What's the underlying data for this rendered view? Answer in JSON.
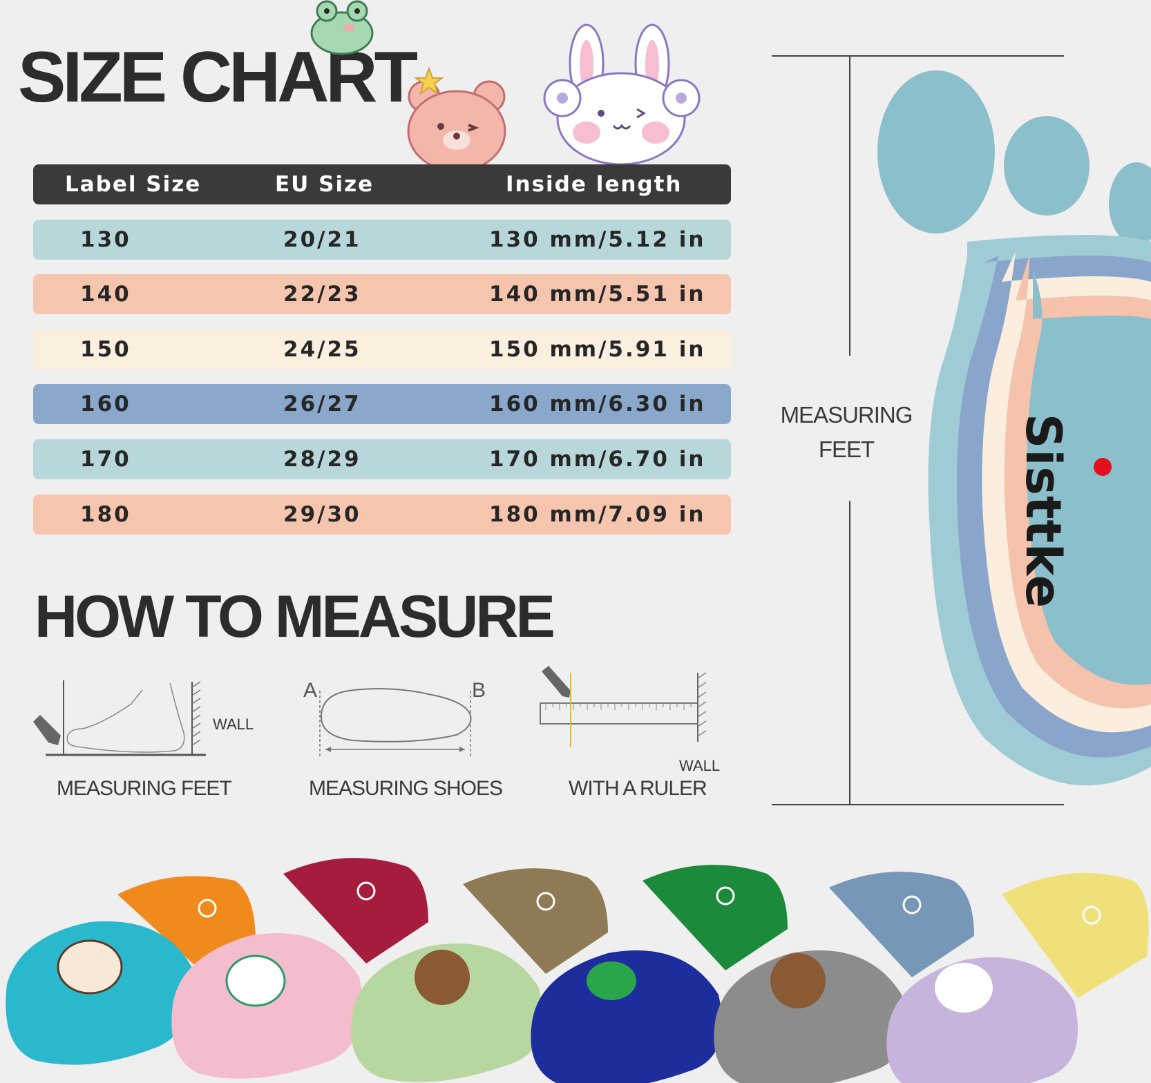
{
  "title": "SIZE CHART",
  "table": {
    "headers": [
      "Label Size",
      "EU Size",
      "Inside length"
    ],
    "rows": [
      {
        "label": "130",
        "eu": "20/21",
        "length": "130 mm/5.12 in",
        "color": "#b8d7da"
      },
      {
        "label": "140",
        "eu": "22/23",
        "length": "140 mm/5.51 in",
        "color": "#f5c5ae"
      },
      {
        "label": "150",
        "eu": "24/25",
        "length": "150 mm/5.91 in",
        "color": "#fbf0df"
      },
      {
        "label": "160",
        "eu": "26/27",
        "length": "160 mm/6.30 in",
        "color": "#89a8cc"
      },
      {
        "label": "170",
        "eu": "28/29",
        "length": "170 mm/6.70 in",
        "color": "#b8d7da"
      },
      {
        "label": "180",
        "eu": "29/30",
        "length": "180 mm/7.09 in",
        "color": "#f5c5ae"
      }
    ]
  },
  "how_to": {
    "title": "HOW TO MEASURE",
    "steps": [
      {
        "label": "MEASURING FEET",
        "wall": "WALL"
      },
      {
        "label": "MEASURING SHOES",
        "a": "A",
        "b": "B"
      },
      {
        "label": "WITH A RULER",
        "wall": "WALL"
      }
    ]
  },
  "side": {
    "measure_line1": "MEASURING",
    "measure_line2": "FEET",
    "brand": "Sisttke",
    "brand_dot_color": "#e3101c"
  },
  "footprint_colors": [
    "#8bbfcc",
    "#8aa5cc",
    "#fbeede",
    "#f5c2ab",
    "#9fcbd5"
  ],
  "sandal_colors": [
    "#29b8cc",
    "#f08a1c",
    "#f4bdcd",
    "#a51c3d",
    "#b7d7a0",
    "#8e7a55",
    "#1d2e9c",
    "#1b8a3a",
    "#8c8c8c",
    "#7797b8",
    "#c7b4dc",
    "#f0e07a"
  ]
}
